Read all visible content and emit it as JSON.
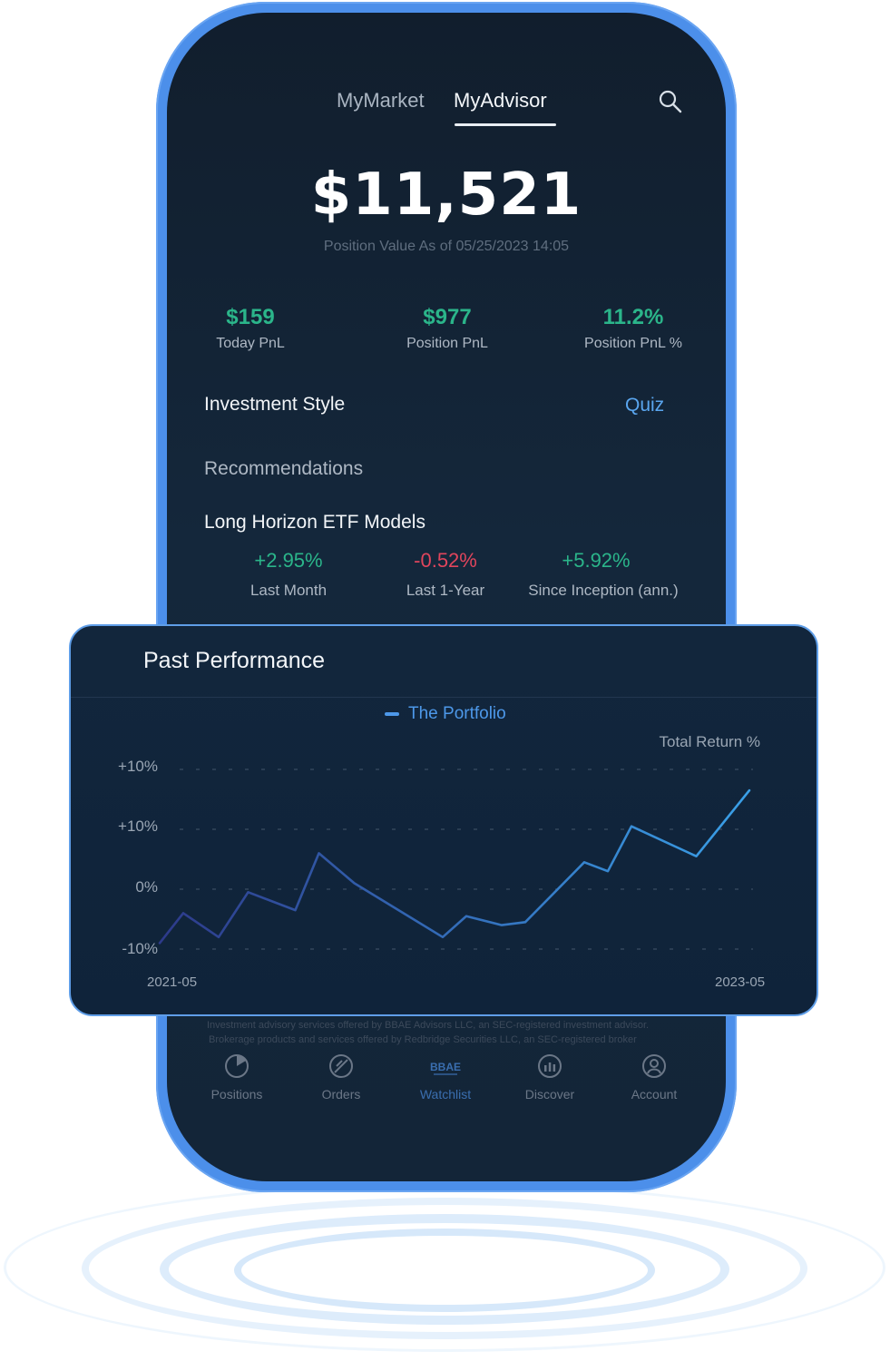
{
  "nav": {
    "tabs": [
      "MyMarket",
      "MyAdvisor"
    ],
    "active_tab": "MyAdvisor",
    "search_icon": "search-icon"
  },
  "summary": {
    "value": "$11,521",
    "caption": "Position Value As of 05/25/2023 14:05"
  },
  "stats": [
    {
      "value": "$159",
      "label": "Today PnL"
    },
    {
      "value": "$977",
      "label": "Position PnL"
    },
    {
      "value": "11.2%",
      "label": "Position PnL %"
    }
  ],
  "investment_style": {
    "title": "Investment Style",
    "action": "Quiz"
  },
  "recommendations": {
    "title": "Recommendations"
  },
  "model": {
    "title": "Long Horizon ETF Models",
    "metrics": [
      {
        "value": "+2.95%",
        "label": "Last Month",
        "color": "#2bb58a"
      },
      {
        "value": "-0.52%",
        "label": "Last 1-Year",
        "color": "#e0455c"
      },
      {
        "value": "+5.92%",
        "label": "Since Inception (ann.)",
        "color": "#2bb58a"
      }
    ]
  },
  "footer": {
    "line1": "Investment advisory services offered by BBAE Advisors LLC, an SEC-registered investment advisor.",
    "line2": "Brokerage products and services offered by Redbridge Securities LLC, an SEC-registered broker"
  },
  "tabbar": [
    {
      "label": "Positions",
      "icon": "pie-chart-icon"
    },
    {
      "label": "Orders",
      "icon": "orders-icon"
    },
    {
      "label": "Watchlist",
      "icon": "bbae-logo-icon",
      "logo_text": "BBAE",
      "active": true
    },
    {
      "label": "Discover",
      "icon": "discover-icon"
    },
    {
      "label": "Account",
      "icon": "user-icon"
    }
  ],
  "card": {
    "title": "Past Performance",
    "legend": "The Portfolio"
  },
  "colors": {
    "accent": "#4d98e9",
    "positive": "#2bb58a",
    "negative": "#e0455c",
    "line_start": "#2d3a8a",
    "line_end": "#3aa0e8"
  },
  "chart_data": {
    "type": "line",
    "ylabel": "Total Return %",
    "y_tick_labels": [
      "+10%",
      "+10%",
      "0%",
      "-10%"
    ],
    "x_tick_labels": [
      "2021-05",
      "2023-05"
    ],
    "ylim": [
      -10,
      20
    ],
    "grid": true,
    "legend": "top-center",
    "series": [
      {
        "name": "The Portfolio",
        "x": [
          0,
          0.04,
          0.1,
          0.15,
          0.23,
          0.27,
          0.33,
          0.48,
          0.52,
          0.58,
          0.62,
          0.72,
          0.76,
          0.8,
          0.91,
          1.0
        ],
        "values": [
          -9,
          -4,
          -8,
          -0.5,
          -3.5,
          6,
          1,
          -8,
          -4.5,
          -6,
          -5.5,
          4.5,
          3,
          10.5,
          5.5,
          16.5
        ]
      }
    ]
  }
}
